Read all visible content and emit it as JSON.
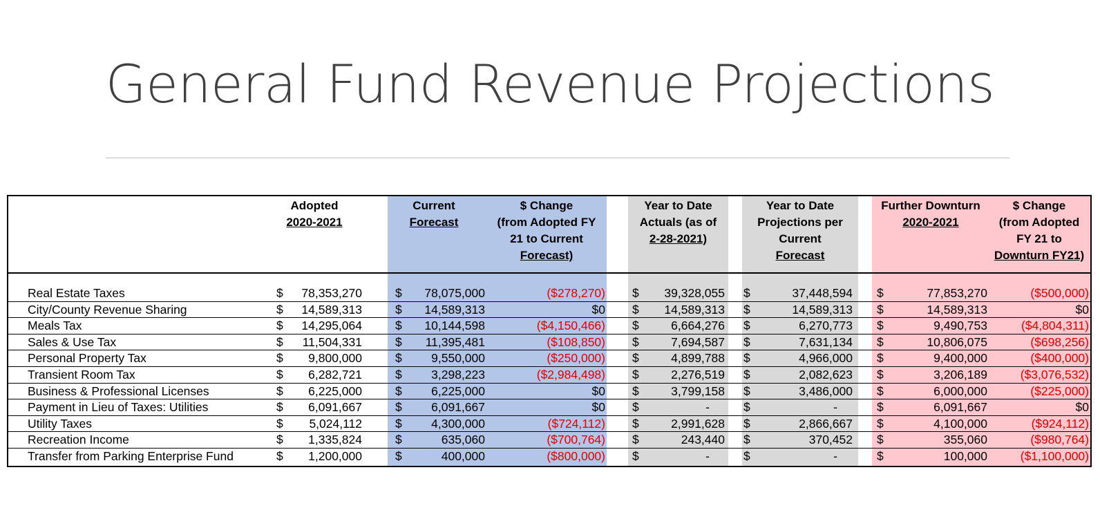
{
  "slide": {
    "title": "General Fund Revenue Projections"
  },
  "table": {
    "headers": {
      "adopted": {
        "line1": "Adopted",
        "line2": "2020-2021"
      },
      "current": {
        "line1": "Current",
        "line2": "Forecast"
      },
      "change1": {
        "line1": "$ Change",
        "line2": "(from Adopted FY",
        "line3": "21 to Current",
        "line4": "Forecast)"
      },
      "ytd_actuals": {
        "line1": "Year to Date",
        "line2": "Actuals (as of",
        "line3": "2-28-2021)"
      },
      "ytd_proj": {
        "line1": "Year to Date",
        "line2": "Projections per",
        "line3": "Current",
        "line4": "Forecast"
      },
      "downturn": {
        "line1": "Further Downturn",
        "line2": "2020-2021"
      },
      "change2": {
        "line1": "$ Change",
        "line2": "(from Adopted",
        "line3": "FY 21 to",
        "line4": "Downturn FY21)"
      }
    },
    "currency_symbol": "$",
    "rows": [
      {
        "label": "Real Estate Taxes",
        "adopted": "78,353,270",
        "current": "78,075,000",
        "change1": "($278,270)",
        "change1_negative": true,
        "ytd_actuals": "39,328,055",
        "ytd_proj": "37,448,594",
        "downturn": "77,853,270",
        "change2": "($500,000)",
        "change2_negative": true
      },
      {
        "label": "City/County Revenue Sharing",
        "adopted": "14,589,313",
        "current": "14,589,313",
        "change1": "$0",
        "change1_negative": false,
        "ytd_actuals": "14,589,313",
        "ytd_proj": "14,589,313",
        "downturn": "14,589,313",
        "change2": "$0",
        "change2_negative": false
      },
      {
        "label": "Meals Tax",
        "adopted": "14,295,064",
        "current": "10,144,598",
        "change1": "($4,150,466)",
        "change1_negative": true,
        "ytd_actuals": "6,664,276",
        "ytd_proj": "6,270,773",
        "downturn": "9,490,753",
        "change2": "($4,804,311)",
        "change2_negative": true
      },
      {
        "label": "Sales & Use Tax",
        "adopted": "11,504,331",
        "current": "11,395,481",
        "change1": "($108,850)",
        "change1_negative": true,
        "ytd_actuals": "7,694,587",
        "ytd_proj": "7,631,134",
        "downturn": "10,806,075",
        "change2": "($698,256)",
        "change2_negative": true
      },
      {
        "label": "Personal Property Tax",
        "adopted": "9,800,000",
        "current": "9,550,000",
        "change1": "($250,000)",
        "change1_negative": true,
        "ytd_actuals": "4,899,788",
        "ytd_proj": "4,966,000",
        "downturn": "9,400,000",
        "change2": "($400,000)",
        "change2_negative": true
      },
      {
        "label": "Transient Room Tax",
        "adopted": "6,282,721",
        "current": "3,298,223",
        "change1": "($2,984,498)",
        "change1_negative": true,
        "ytd_actuals": "2,276,519",
        "ytd_proj": "2,082,623",
        "downturn": "3,206,189",
        "change2": "($3,076,532)",
        "change2_negative": true
      },
      {
        "label": "Business & Professional Licenses",
        "adopted": "6,225,000",
        "current": "6,225,000",
        "change1": "$0",
        "change1_negative": false,
        "ytd_actuals": "3,799,158",
        "ytd_proj": "3,486,000",
        "downturn": "6,000,000",
        "change2": "($225,000)",
        "change2_negative": true
      },
      {
        "label": "Payment in Lieu of Taxes:  Utilities",
        "adopted": "6,091,667",
        "current": "6,091,667",
        "change1": "$0",
        "change1_negative": false,
        "ytd_actuals": "-",
        "ytd_proj": "-",
        "downturn": "6,091,667",
        "change2": "$0",
        "change2_negative": false
      },
      {
        "label": "Utility Taxes",
        "adopted": "5,024,112",
        "current": "4,300,000",
        "change1": "($724,112)",
        "change1_negative": true,
        "ytd_actuals": "2,991,628",
        "ytd_proj": "2,866,667",
        "downturn": "4,100,000",
        "change2": "($924,112)",
        "change2_negative": true
      },
      {
        "label": "Recreation Income",
        "adopted": "1,335,824",
        "current": "635,060",
        "change1": "($700,764)",
        "change1_negative": true,
        "ytd_actuals": "243,440",
        "ytd_proj": "370,452",
        "downturn": "355,060",
        "change2": "($980,764)",
        "change2_negative": true
      },
      {
        "label": "Transfer from Parking Enterprise Fund",
        "adopted": "1,200,000",
        "current": "400,000",
        "change1": "($800,000)",
        "change1_negative": true,
        "ytd_actuals": "-",
        "ytd_proj": "-",
        "downturn": "100,000",
        "change2": "($1,100,000)",
        "change2_negative": true
      }
    ]
  },
  "colors": {
    "current_band": "#b4c6e7",
    "ytd_band": "#d9d9d9",
    "downturn_band": "#ffc7ce",
    "negative_text": "#e00000"
  }
}
